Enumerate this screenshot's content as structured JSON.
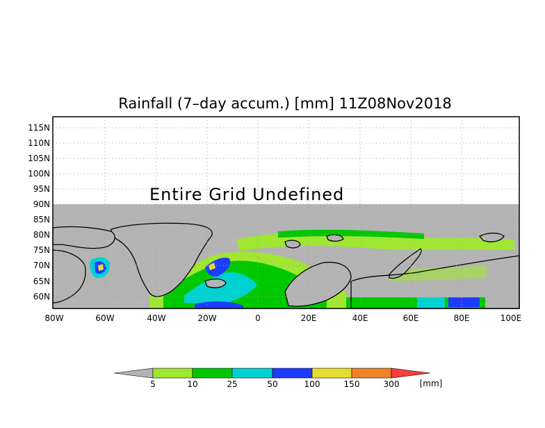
{
  "title": "Rainfall (7–day accum.) [mm] 11Z08Nov2018",
  "undefined_notice": "Entire Grid Undefined",
  "axes": {
    "lat_labels": [
      "115N",
      "110N",
      "105N",
      "100N",
      "95N",
      "90N",
      "85N",
      "80N",
      "75N",
      "70N",
      "65N",
      "60N"
    ],
    "lon_labels": [
      "80W",
      "60W",
      "40W",
      "20W",
      "0",
      "20E",
      "40E",
      "60E",
      "80E",
      "100E"
    ]
  },
  "colors": {
    "undefined": "#b4b4b4",
    "coast": "#000000",
    "grid": "#a0a0a0"
  },
  "legend": {
    "units": "[mm]",
    "bins": [
      {
        "label": "5",
        "color": "#a0e632"
      },
      {
        "label": "10",
        "color": "#00c800"
      },
      {
        "label": "25",
        "color": "#00d2d2"
      },
      {
        "label": "50",
        "color": "#1e3cff"
      },
      {
        "label": "100",
        "color": "#e6dc32"
      },
      {
        "label": "150",
        "color": "#f08228"
      },
      {
        "label": "300",
        "color": "#fa3c3c"
      }
    ],
    "low_color": "#b4b4b4",
    "high_color": "#fa3c3c"
  }
}
